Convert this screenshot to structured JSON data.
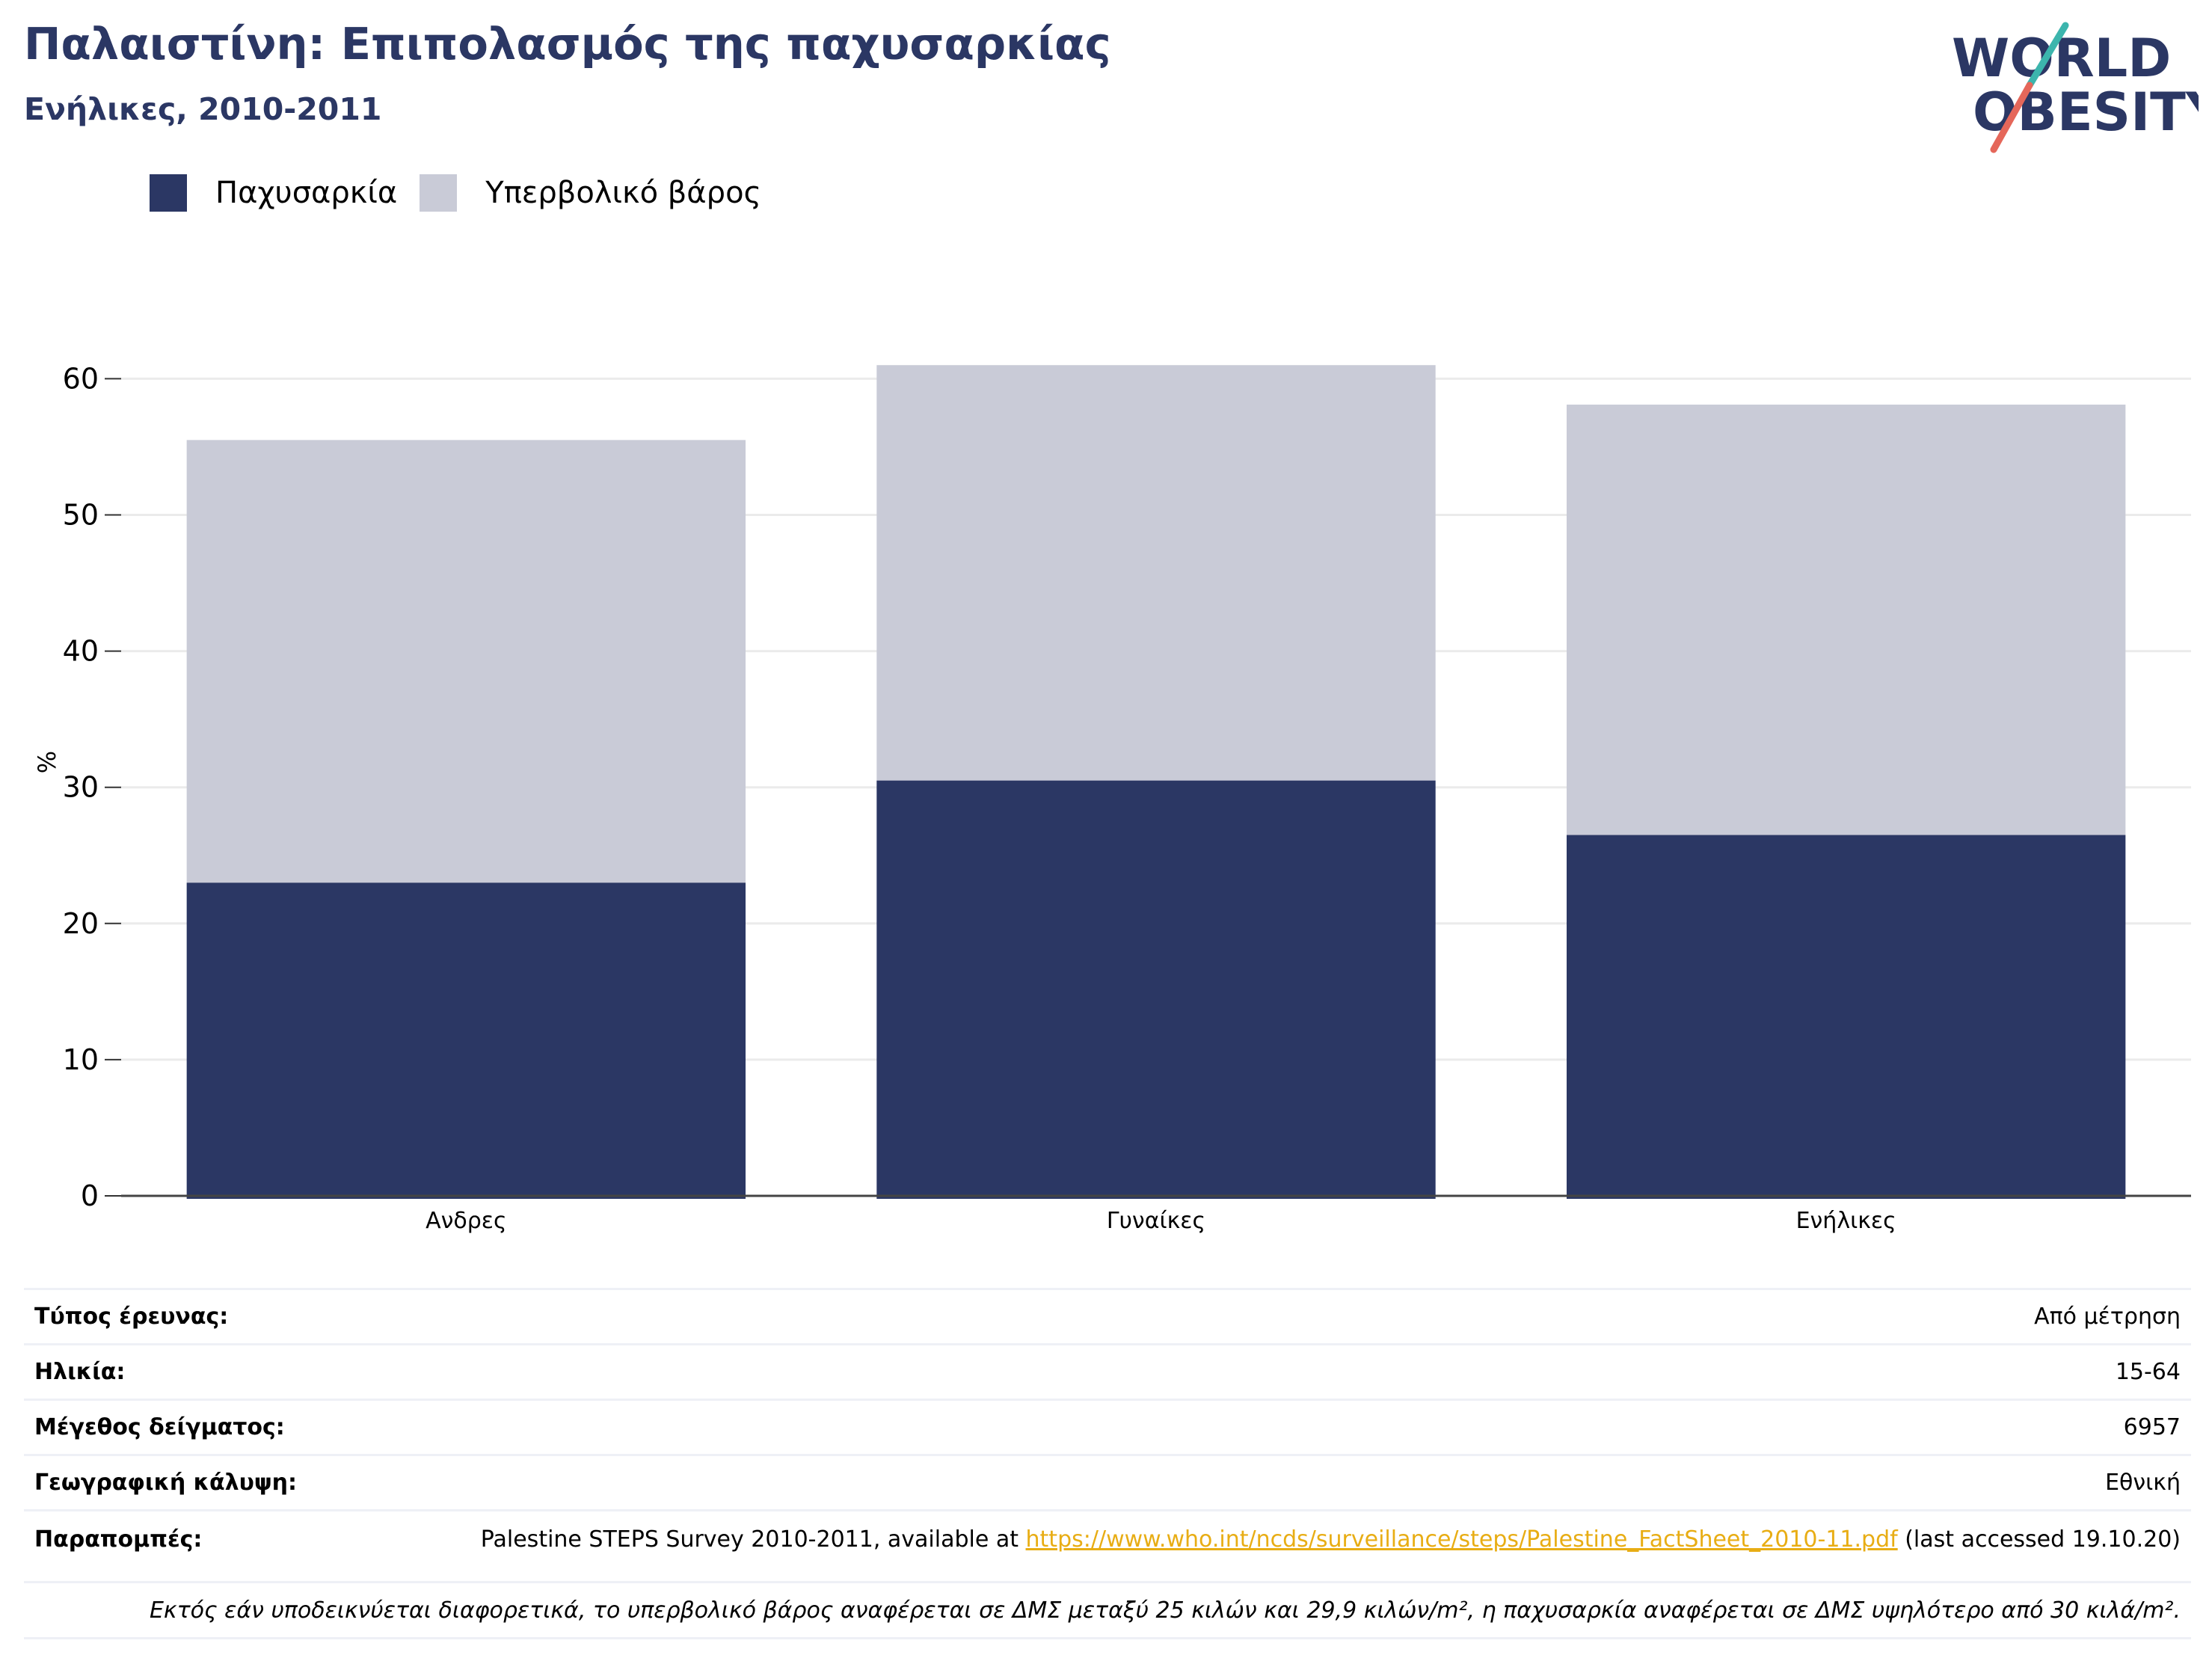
{
  "header": {
    "title": "Παλαιστίνη: Επιπολασμός της παχυσαρκίας",
    "subtitle": "Ενήλικες, 2010-2011"
  },
  "logo": {
    "line1": "WORLD",
    "line2": "OBESITY"
  },
  "colors": {
    "obesity": "#2b3764",
    "overweight": "#c9cbd7",
    "title": "#2b3764",
    "link": "#e8ad14",
    "grid": "#ebebeb"
  },
  "chart_data": {
    "type": "bar",
    "stacked": true,
    "categories": [
      "Ανδρες",
      "Γυναίκες",
      "Ενήλικες"
    ],
    "series": [
      {
        "name": "Παχυσαρκία",
        "values": [
          23.0,
          30.5,
          26.5
        ]
      },
      {
        "name": "Υπερβολικό βάρος",
        "values": [
          32.5,
          30.5,
          31.6
        ]
      }
    ],
    "ylabel": "%",
    "ylim": [
      0,
      62
    ],
    "yticks": [
      0,
      10,
      20,
      30,
      40,
      50,
      60
    ],
    "grid": true,
    "legend_position": "top-left"
  },
  "info": {
    "rows": [
      {
        "label": "Τύπος έρευνας:",
        "value": "Από μέτρηση"
      },
      {
        "label": "Ηλικία:",
        "value": "15-64"
      },
      {
        "label": "Μέγεθος δείγματος:",
        "value": "6957"
      },
      {
        "label": "Γεωγραφική κάλυψη:",
        "value": "Εθνική"
      }
    ],
    "references": {
      "label": "Παραπομπές:",
      "text_before": "Palestine STEPS Survey 2010-2011, available at ",
      "link": "https://www.who.int/ncds/surveillance/steps/Palestine_FactSheet_2010-11.pdf",
      "text_after": " (last accessed 19.10.20)"
    },
    "footnote": "Εκτός εάν υποδεικνύεται διαφορετικά, το υπερβολικό βάρος αναφέρεται σε ΔΜΣ μεταξύ 25 κιλών και 29,9 κιλών/m², η παχυσαρκία αναφέρεται σε ΔΜΣ υψηλότερο από 30 κιλά/m²."
  }
}
